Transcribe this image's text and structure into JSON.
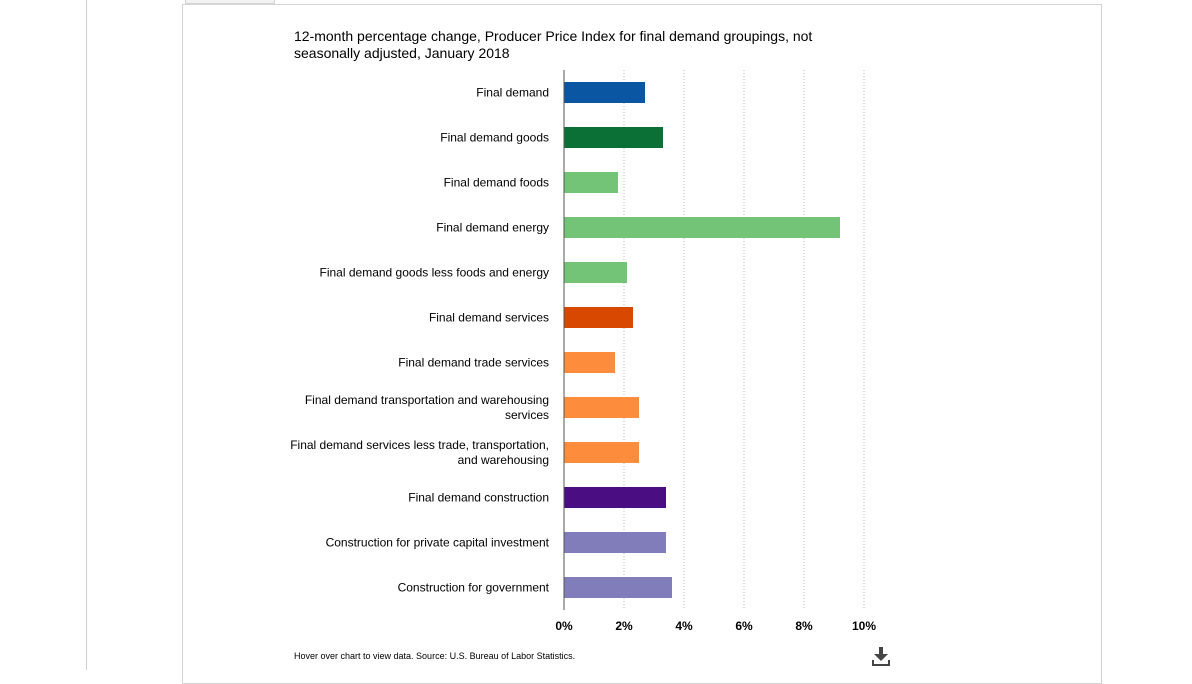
{
  "chart_data": {
    "type": "bar",
    "orientation": "horizontal",
    "title": "12-month percentage change, Producer Price Index for final demand groupings, not seasonally adjusted, January 2018",
    "categories": [
      "Final demand",
      "Final demand goods",
      "Final demand foods",
      "Final demand energy",
      "Final demand goods less foods and energy",
      "Final demand services",
      "Final demand trade services",
      "Final demand transportation and warehousing services",
      "Final demand services less trade, transportation, and warehousing",
      "Final demand construction",
      "Construction for private capital investment",
      "Construction for government"
    ],
    "category_lines": [
      [
        "Final demand"
      ],
      [
        "Final demand goods"
      ],
      [
        "Final demand foods"
      ],
      [
        "Final demand energy"
      ],
      [
        "Final demand goods less foods and energy"
      ],
      [
        "Final demand services"
      ],
      [
        "Final demand trade services"
      ],
      [
        "Final demand transportation and warehousing",
        "services"
      ],
      [
        "Final demand services less trade, transportation,",
        "and warehousing"
      ],
      [
        "Final demand construction"
      ],
      [
        "Construction for private capital investment"
      ],
      [
        "Construction for government"
      ]
    ],
    "values": [
      2.7,
      3.3,
      1.8,
      9.2,
      2.1,
      2.3,
      1.7,
      2.5,
      2.5,
      3.4,
      3.4,
      3.6
    ],
    "colors": [
      "#0b56a3",
      "#0b7035",
      "#73c476",
      "#73c476",
      "#73c476",
      "#d94801",
      "#fd8d3c",
      "#fd8d3c",
      "#fd8d3c",
      "#4a0d82",
      "#807dba",
      "#807dba"
    ],
    "xlim": [
      0,
      10
    ],
    "xticks": [
      0,
      2,
      4,
      6,
      8,
      10
    ],
    "xtick_labels": [
      "0%",
      "2%",
      "4%",
      "6%",
      "8%",
      "10%"
    ],
    "grid": "vertical dotted",
    "xlabel": "",
    "ylabel": ""
  },
  "footer": {
    "source_note": "Hover over chart to view data. Source: U.S. Bureau of Labor Statistics.",
    "download_icon": "download-icon"
  }
}
